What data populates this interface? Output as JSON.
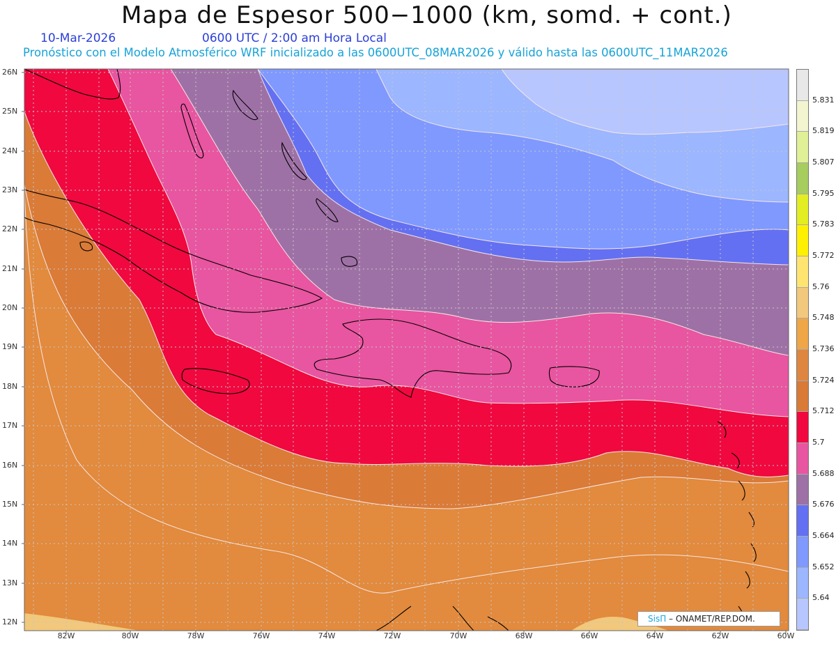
{
  "header": {
    "title": "Mapa de Espesor 500−1000 (km, somd. + cont.)",
    "date": "10-Mar-2026",
    "utc_time": "0600 UTC / 2:00 am Hora Local",
    "forecast_info": "Pronóstico con el Modelo Atmosférico WRF inicializado a las 0600UTC_08MAR2026 y válido hasta las  0600UTC_11MAR2026"
  },
  "map": {
    "lat_labels": [
      "26N",
      "25N",
      "24N",
      "23N",
      "22N",
      "21N",
      "20N",
      "19N",
      "18N",
      "17N",
      "16N",
      "15N",
      "14N",
      "13N",
      "12N"
    ],
    "lon_labels": [
      "82W",
      "80W",
      "78W",
      "76W",
      "74W",
      "72W",
      "70W",
      "68W",
      "66W",
      "64W",
      "62W",
      "60W"
    ],
    "lat_range": [
      12,
      26
    ],
    "lon_range": [
      -83.2,
      -60
    ],
    "grid_spacing_deg": 1,
    "colors": {
      "gridline": "#c8c8c8",
      "contour": "#f6e7e7",
      "coastline": "#000000"
    }
  },
  "colorbar": {
    "levels": [
      "5.831",
      "5.819",
      "5.807",
      "5.795",
      "5.783",
      "5.772",
      "5.76",
      "5.748",
      "5.736",
      "5.724",
      "5.712",
      "5.7",
      "5.688",
      "5.676",
      "5.664",
      "5.652",
      "5.64"
    ],
    "colors": [
      "#e8e8e8",
      "#f2f5cf",
      "#e0f096",
      "#a6cd5e",
      "#e2ee22",
      "#fff000",
      "#ffe570",
      "#f1c87c",
      "#eea647",
      "#de8640",
      "#d97a37",
      "#f0083f",
      "#e855a0",
      "#9e71a6",
      "#6470f2",
      "#7f99ff",
      "#9cb6ff",
      "#b8c6ff"
    ]
  },
  "credit": {
    "brand": "SisΠ",
    "text": " – ONAMET/REP.DOM."
  }
}
